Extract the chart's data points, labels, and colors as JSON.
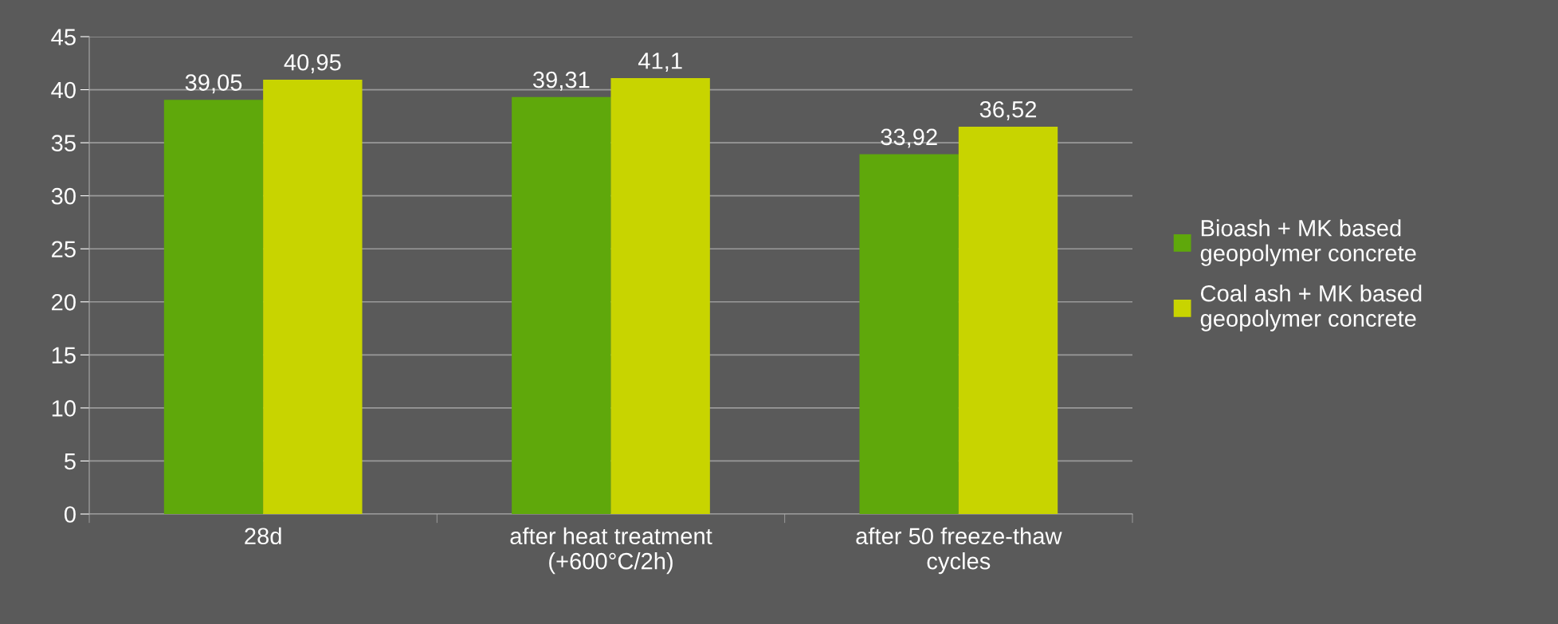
{
  "chart_data": {
    "type": "bar",
    "categories": [
      "28d",
      "after heat treatment\n(+600°C/2h)",
      "after 50 freeze-thaw\ncycles"
    ],
    "series": [
      {
        "name": "Bioash + MK based\ngeopolymer concrete",
        "color": "#5fa80b",
        "values": [
          39.05,
          39.31,
          33.92
        ],
        "value_labels": [
          "39,05",
          "39,31",
          "33,92"
        ]
      },
      {
        "name": "Coal ash + MK based\ngeopolymer concrete",
        "color": "#c8d400",
        "values": [
          40.95,
          41.1,
          36.52
        ],
        "value_labels": [
          "40,95",
          "41,1",
          "36,52"
        ]
      }
    ],
    "ylim": [
      0,
      45
    ],
    "yticks": [
      0,
      5,
      10,
      15,
      20,
      25,
      30,
      35,
      40,
      45
    ],
    "grid": "y",
    "legend": "right"
  }
}
